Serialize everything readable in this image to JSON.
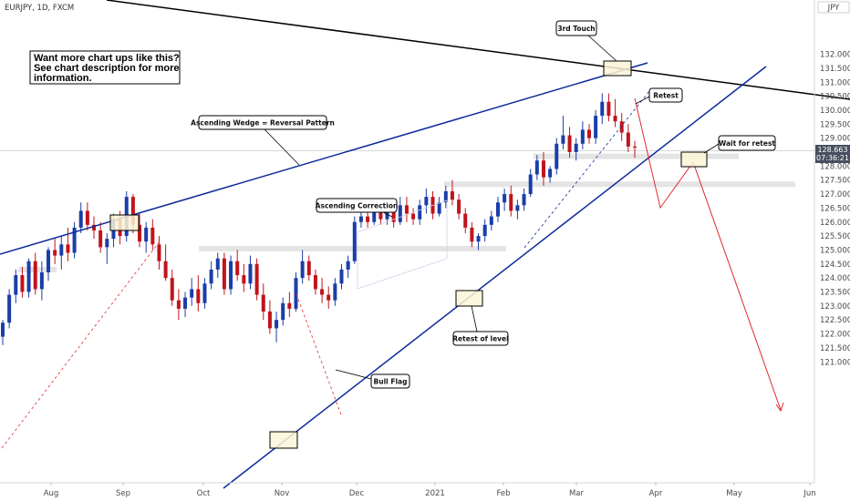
{
  "symbol_label": "EURJPY, 1D, FXCM",
  "currency_label": "JPY",
  "info_box": {
    "lines": [
      "Want more chart ups like this?",
      "See chart description for more",
      "information."
    ]
  },
  "current_price": {
    "value": "128.663",
    "countdown": "07:36:21",
    "tag_color": "#484f5e"
  },
  "colors": {
    "up_candle": "#1a3ea8",
    "down_candle": "#c0141c",
    "wedge_line": "#0d2a9c",
    "resistance_line": "#000000",
    "projection": "#e0282e",
    "zone_fill": "#e4e4e4",
    "highlight_fill": "#fbf4d6"
  },
  "chart_data": {
    "type": "candlestick",
    "x_axis": {
      "ticks": [
        "Aug",
        "Sep",
        "Oct",
        "Nov",
        "Dec",
        "2021",
        "Feb",
        "Mar",
        "Apr",
        "May",
        "Jun"
      ]
    },
    "y_axis": {
      "range": [
        120.8,
        132.2
      ],
      "ticks": [
        "121.000",
        "121.500",
        "122.000",
        "122.500",
        "123.000",
        "123.500",
        "124.000",
        "124.500",
        "125.000",
        "125.500",
        "126.000",
        "126.500",
        "127.000",
        "127.500",
        "128.000",
        "128.500",
        "129.000",
        "129.500",
        "130.000",
        "130.500",
        "131.000",
        "131.500",
        "132.000"
      ]
    },
    "candles": [
      [
        121.9,
        122.5,
        121.6,
        122.4
      ],
      [
        122.4,
        123.6,
        122.2,
        123.4
      ],
      [
        123.4,
        124.3,
        123.1,
        124.1
      ],
      [
        124.1,
        124.4,
        123.3,
        123.5
      ],
      [
        123.5,
        124.7,
        123.3,
        124.6
      ],
      [
        124.6,
        124.9,
        123.4,
        123.6
      ],
      [
        123.6,
        124.6,
        123.2,
        124.2
      ],
      [
        124.2,
        125.1,
        123.9,
        125.0
      ],
      [
        125.0,
        125.4,
        124.5,
        124.8
      ],
      [
        124.8,
        125.5,
        124.3,
        125.2
      ],
      [
        125.2,
        125.8,
        124.6,
        124.9
      ],
      [
        124.9,
        126.0,
        124.7,
        125.8
      ],
      [
        125.8,
        126.7,
        125.6,
        126.4
      ],
      [
        126.4,
        126.7,
        125.7,
        125.9
      ],
      [
        125.9,
        126.2,
        125.4,
        125.7
      ],
      [
        125.7,
        126.0,
        124.9,
        125.1
      ],
      [
        125.1,
        125.6,
        124.5,
        125.4
      ],
      [
        125.4,
        126.3,
        125.1,
        126.1
      ],
      [
        126.1,
        126.4,
        125.2,
        125.5
      ],
      [
        125.5,
        127.1,
        125.3,
        126.9
      ],
      [
        126.9,
        127.0,
        125.6,
        125.9
      ],
      [
        125.9,
        126.3,
        125.1,
        125.3
      ],
      [
        125.3,
        126.0,
        124.9,
        125.8
      ],
      [
        125.8,
        126.1,
        125.0,
        125.2
      ],
      [
        125.2,
        125.5,
        124.3,
        124.6
      ],
      [
        124.6,
        125.2,
        123.9,
        124.0
      ],
      [
        124.0,
        124.3,
        123.0,
        123.2
      ],
      [
        123.2,
        123.6,
        122.5,
        122.9
      ],
      [
        122.9,
        123.5,
        122.6,
        123.3
      ],
      [
        123.3,
        124.0,
        123.0,
        123.6
      ],
      [
        123.6,
        124.1,
        122.8,
        123.1
      ],
      [
        123.1,
        124.0,
        122.9,
        123.8
      ],
      [
        123.8,
        124.6,
        123.6,
        124.3
      ],
      [
        124.3,
        124.9,
        124.0,
        124.7
      ],
      [
        124.7,
        124.9,
        123.4,
        123.6
      ],
      [
        123.6,
        124.8,
        123.4,
        124.6
      ],
      [
        124.6,
        125.0,
        123.9,
        124.1
      ],
      [
        124.1,
        124.5,
        123.5,
        123.8
      ],
      [
        123.8,
        124.8,
        123.6,
        124.5
      ],
      [
        124.5,
        124.7,
        123.2,
        123.4
      ],
      [
        123.4,
        123.8,
        122.5,
        122.8
      ],
      [
        122.8,
        123.2,
        122.0,
        122.2
      ],
      [
        122.2,
        122.8,
        121.7,
        122.5
      ],
      [
        122.5,
        123.3,
        122.3,
        123.1
      ],
      [
        123.1,
        123.5,
        122.6,
        122.9
      ],
      [
        122.9,
        124.2,
        122.8,
        124.0
      ],
      [
        124.0,
        125.0,
        123.8,
        124.6
      ],
      [
        124.6,
        124.8,
        123.9,
        124.1
      ],
      [
        124.1,
        124.3,
        123.4,
        123.6
      ],
      [
        123.6,
        124.0,
        123.1,
        123.4
      ],
      [
        123.4,
        123.7,
        122.9,
        123.2
      ],
      [
        123.2,
        124.0,
        123.0,
        123.8
      ],
      [
        123.8,
        124.5,
        123.6,
        124.3
      ],
      [
        124.3,
        124.8,
        124.0,
        124.6
      ],
      [
        124.6,
        126.2,
        124.5,
        126.0
      ],
      [
        126.0,
        126.8,
        125.8,
        126.2
      ],
      [
        126.2,
        126.6,
        125.8,
        126.0
      ],
      [
        126.0,
        126.6,
        125.9,
        126.4
      ],
      [
        126.4,
        126.7,
        125.9,
        126.1
      ],
      [
        126.1,
        126.8,
        125.9,
        126.5
      ],
      [
        126.5,
        126.7,
        125.8,
        126.0
      ],
      [
        126.0,
        126.9,
        125.9,
        126.6
      ],
      [
        126.6,
        126.9,
        126.0,
        126.3
      ],
      [
        126.3,
        126.5,
        125.9,
        126.1
      ],
      [
        126.1,
        126.8,
        125.9,
        126.6
      ],
      [
        126.6,
        127.2,
        126.3,
        126.9
      ],
      [
        126.9,
        127.1,
        126.1,
        126.3
      ],
      [
        126.3,
        126.9,
        126.2,
        126.7
      ],
      [
        126.7,
        127.3,
        126.5,
        127.1
      ],
      [
        127.1,
        127.5,
        126.6,
        126.8
      ],
      [
        126.8,
        127.0,
        126.1,
        126.3
      ],
      [
        126.3,
        126.5,
        125.6,
        125.8
      ],
      [
        125.8,
        126.0,
        125.1,
        125.3
      ],
      [
        125.3,
        125.6,
        125.0,
        125.5
      ],
      [
        125.5,
        126.1,
        125.3,
        125.9
      ],
      [
        125.9,
        126.4,
        125.7,
        126.2
      ],
      [
        126.2,
        126.9,
        126.0,
        126.7
      ],
      [
        126.7,
        127.2,
        126.4,
        127.0
      ],
      [
        127.0,
        127.3,
        126.2,
        126.4
      ],
      [
        126.4,
        126.8,
        126.1,
        126.6
      ],
      [
        126.6,
        127.2,
        126.4,
        127.0
      ],
      [
        127.0,
        127.9,
        126.9,
        127.7
      ],
      [
        127.7,
        128.4,
        127.5,
        128.2
      ],
      [
        128.2,
        128.5,
        127.3,
        127.6
      ],
      [
        127.6,
        128.0,
        127.4,
        127.9
      ],
      [
        127.9,
        129.0,
        127.7,
        128.8
      ],
      [
        128.8,
        129.8,
        128.6,
        129.1
      ],
      [
        129.1,
        129.4,
        128.3,
        128.5
      ],
      [
        128.5,
        129.0,
        128.2,
        128.8
      ],
      [
        128.8,
        129.6,
        128.6,
        129.3
      ],
      [
        129.3,
        129.5,
        128.8,
        129.0
      ],
      [
        129.0,
        130.0,
        128.8,
        129.8
      ],
      [
        129.8,
        130.6,
        129.5,
        130.3
      ],
      [
        130.3,
        130.6,
        129.6,
        129.8
      ],
      [
        129.8,
        130.4,
        129.4,
        129.6
      ],
      [
        129.6,
        129.9,
        128.9,
        129.2
      ],
      [
        129.2,
        129.5,
        128.5,
        128.7
      ],
      [
        128.7,
        128.9,
        128.3,
        128.663
      ]
    ],
    "annotations": [
      "3rd Touch",
      "Retest",
      "Wait for retest",
      "Ascending Wedge = Reversal Pattern",
      "Ascending Correction",
      "Retest of level",
      "Bull Flag"
    ]
  }
}
